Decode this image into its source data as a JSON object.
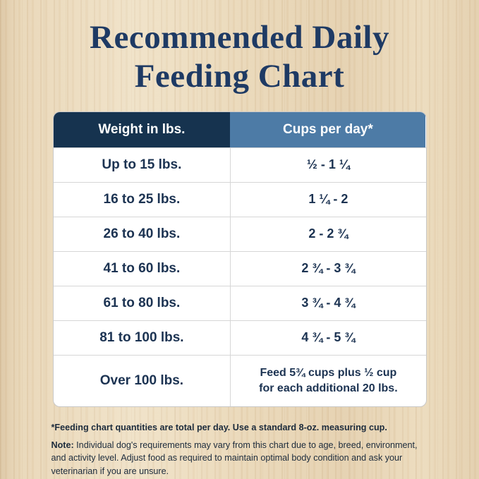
{
  "title": {
    "line1": "Recommended Daily",
    "line2": "Feeding Chart"
  },
  "table": {
    "headers": [
      "Weight in lbs.",
      "Cups per day*"
    ],
    "rows": [
      {
        "weight": "Up to 15 lbs.",
        "cups": "½ - 1 ¼"
      },
      {
        "weight": "16 to 25 lbs.",
        "cups": "1 ¼ - 2"
      },
      {
        "weight": "26 to 40 lbs.",
        "cups": "2 - 2 ¾"
      },
      {
        "weight": "41 to 60 lbs.",
        "cups": "2 ¾ - 3 ¾"
      },
      {
        "weight": "61 to 80 lbs.",
        "cups": "3 ¾ - 4 ¾"
      },
      {
        "weight": "81 to 100 lbs.",
        "cups": "4 ¾ - 5 ¾"
      },
      {
        "weight": "Over 100 lbs.",
        "cups": "Feed 5¾ cups plus ½ cup\nfor each additional 20 lbs."
      }
    ]
  },
  "footnotes": {
    "asterisk": "*Feeding chart quantities are total per day. Use a standard 8-oz. measuring cup.",
    "note_label": "Note:",
    "note_text": " Individual dog's requirements may vary from this chart due to age, breed, environment, and activity level. Adjust food as required to maintain optimal body condition and ask your veterinarian if you are unsure."
  },
  "colors": {
    "title_navy": "#1e3a64",
    "header_dark_navy": "#16334f",
    "header_steel_blue": "#4d7ba6",
    "body_text_navy": "#1c3352",
    "table_background": "#ffffff",
    "row_divider_gray": "#d6d6d6",
    "wood_background": "#e9d7b8"
  },
  "chart_data": {
    "type": "table",
    "title": "Recommended Daily Feeding Chart",
    "columns": [
      "Weight in lbs.",
      "Cups per day*"
    ],
    "rows": [
      [
        "Up to 15 lbs.",
        "½ - 1 ¼"
      ],
      [
        "16 to 25 lbs.",
        "1 ¼ - 2"
      ],
      [
        "26 to 40 lbs.",
        "2 - 2 ¾"
      ],
      [
        "41 to 60 lbs.",
        "2 ¾ - 3 ¾"
      ],
      [
        "61 to 80 lbs.",
        "3 ¾ - 4 ¾"
      ],
      [
        "81 to 100 lbs.",
        "4 ¾ - 5 ¾"
      ],
      [
        "Over 100 lbs.",
        "Feed 5¾ cups plus ½ cup for each additional 20 lbs."
      ]
    ],
    "notes": [
      "*Feeding chart quantities are total per day. Use a standard 8-oz. measuring cup.",
      "Note: Individual dog's requirements may vary from this chart due to age, breed, environment, and activity level. Adjust food as required to maintain optimal body condition and ask your veterinarian if you are unsure."
    ]
  }
}
